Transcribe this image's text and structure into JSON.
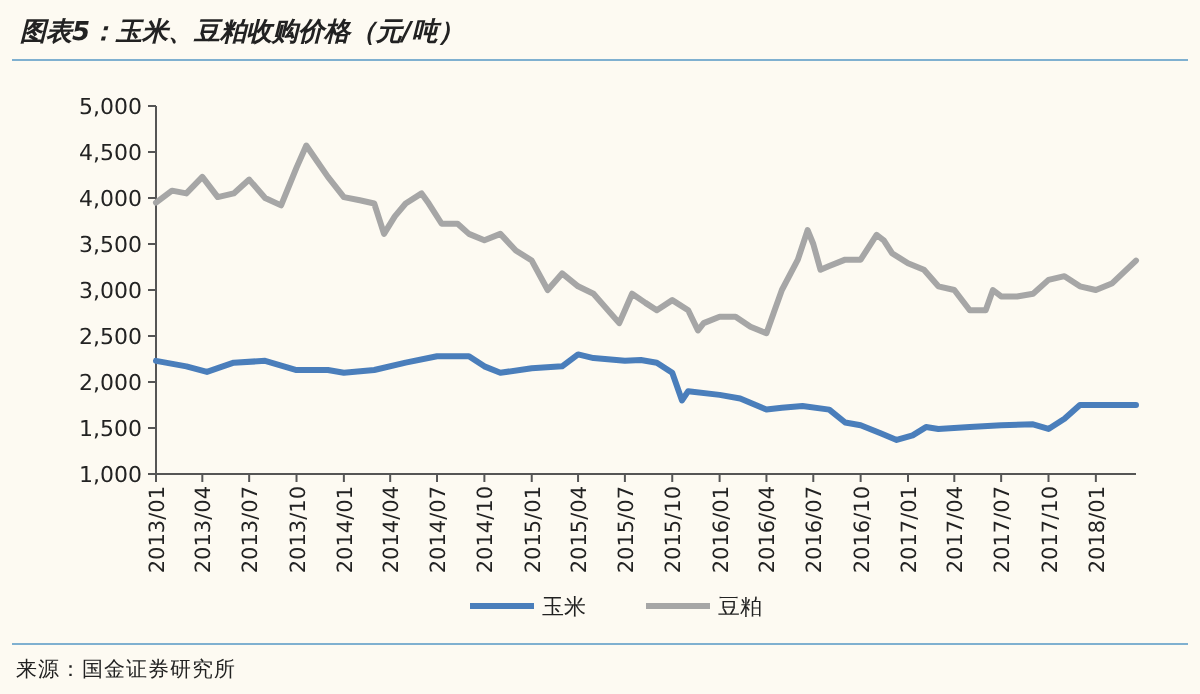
{
  "chart_data": {
    "type": "line",
    "title": "图表5：玉米、豆粕收购价格（元/吨）",
    "annotations": [
      "来源：国金证券研究所"
    ],
    "xlim": [
      "2013-01",
      "2018-03-20"
    ],
    "ylim": [
      1000,
      5000
    ],
    "yticks": [
      {
        "value": 1000,
        "label": "1,000"
      },
      {
        "value": 1500,
        "label": "1,500"
      },
      {
        "value": 2000,
        "label": "2,000"
      },
      {
        "value": 2500,
        "label": "2,500"
      },
      {
        "value": 3000,
        "label": "3,000"
      },
      {
        "value": 3500,
        "label": "3,500"
      },
      {
        "value": 4000,
        "label": "4,000"
      },
      {
        "value": 4500,
        "label": "4,500"
      },
      {
        "value": 5000,
        "label": "5,000"
      }
    ],
    "xticks": [
      {
        "value": "2013-01",
        "label": "2013/01"
      },
      {
        "value": "2013-04",
        "label": "2013/04"
      },
      {
        "value": "2013-07",
        "label": "2013/07"
      },
      {
        "value": "2013-10",
        "label": "2013/10"
      },
      {
        "value": "2014-01",
        "label": "2014/01"
      },
      {
        "value": "2014-04",
        "label": "2014/04"
      },
      {
        "value": "2014-07",
        "label": "2014/07"
      },
      {
        "value": "2014-10",
        "label": "2014/10"
      },
      {
        "value": "2015-01",
        "label": "2015/01"
      },
      {
        "value": "2015-04",
        "label": "2015/04"
      },
      {
        "value": "2015-07",
        "label": "2015/07"
      },
      {
        "value": "2015-10",
        "label": "2015/10"
      },
      {
        "value": "2016-01",
        "label": "2016/01"
      },
      {
        "value": "2016-04",
        "label": "2016/04"
      },
      {
        "value": "2016-07",
        "label": "2016/07"
      },
      {
        "value": "2016-10",
        "label": "2016/10"
      },
      {
        "value": "2017-01",
        "label": "2017/01"
      },
      {
        "value": "2017-04",
        "label": "2017/04"
      },
      {
        "value": "2017-07",
        "label": "2017/07"
      },
      {
        "value": "2017-10",
        "label": "2017/10"
      },
      {
        "value": "2018-01",
        "label": "2018/01"
      }
    ],
    "legend": "bottom",
    "grid": false,
    "marker": "none",
    "line_style": "solid",
    "series": [
      {
        "name": "玉米",
        "color": "#4a7ebb",
        "x": [
          "2013-01-01",
          "2013-03-01",
          "2013-04-10",
          "2013-05-01",
          "2013-06-01",
          "2013-08-01",
          "2013-10-01",
          "2013-12-01",
          "2014-01-01",
          "2014-03-01",
          "2014-05-01",
          "2014-07-01",
          "2014-09-01",
          "2014-10-01",
          "2014-11-01",
          "2015-01-01",
          "2015-03-01",
          "2015-04-01",
          "2015-05-01",
          "2015-07-01",
          "2015-08-01",
          "2015-09-01",
          "2015-10-01",
          "2015-10-20",
          "2015-11-01",
          "2016-01-01",
          "2016-02-10",
          "2016-04-01",
          "2016-05-01",
          "2016-06-10",
          "2016-08-01",
          "2016-09-01",
          "2016-10-01",
          "2016-11-10",
          "2016-12-10",
          "2017-01-10",
          "2017-02-05",
          "2017-03-01",
          "2017-05-01",
          "2017-07-01",
          "2017-09-01",
          "2017-10-01",
          "2017-11-01",
          "2017-12-01",
          "2018-03-20"
        ],
        "values": [
          2230,
          2170,
          2110,
          2150,
          2210,
          2230,
          2130,
          2130,
          2100,
          2130,
          2210,
          2280,
          2280,
          2170,
          2100,
          2150,
          2170,
          2300,
          2260,
          2230,
          2240,
          2210,
          2100,
          1800,
          1900,
          1860,
          1820,
          1700,
          1720,
          1740,
          1700,
          1560,
          1530,
          1440,
          1370,
          1420,
          1510,
          1490,
          1510,
          1530,
          1540,
          1490,
          1600,
          1750,
          1750
        ]
      },
      {
        "name": "豆粕",
        "color": "#a6a6a6",
        "x": [
          "2013-01-01",
          "2013-02-01",
          "2013-03-01",
          "2013-04-01",
          "2013-05-01",
          "2013-06-01",
          "2013-07-01",
          "2013-08-01",
          "2013-09-01",
          "2013-10-01",
          "2013-10-20",
          "2013-11-10",
          "2013-12-01",
          "2014-01-01",
          "2014-02-01",
          "2014-03-01",
          "2014-03-20",
          "2014-04-10",
          "2014-05-01",
          "2014-06-01",
          "2014-06-15",
          "2014-07-10",
          "2014-08-10",
          "2014-09-01",
          "2014-10-01",
          "2014-11-01",
          "2014-12-01",
          "2015-01-01",
          "2015-02-01",
          "2015-03-01",
          "2015-04-01",
          "2015-05-01",
          "2015-06-20",
          "2015-07-15",
          "2015-08-10",
          "2015-09-01",
          "2015-10-01",
          "2015-11-01",
          "2015-11-20",
          "2015-12-01",
          "2016-01-01",
          "2016-02-01",
          "2016-03-01",
          "2016-04-01",
          "2016-04-15",
          "2016-05-01",
          "2016-06-01",
          "2016-06-20",
          "2016-07-01",
          "2016-07-15",
          "2016-08-01",
          "2016-09-01",
          "2016-10-01",
          "2016-11-01",
          "2016-11-15",
          "2016-12-01",
          "2017-01-01",
          "2017-02-01",
          "2017-03-01",
          "2017-04-01",
          "2017-05-01",
          "2017-06-01",
          "2017-06-15",
          "2017-07-01",
          "2017-08-01",
          "2017-09-01",
          "2017-10-01",
          "2017-11-01",
          "2017-12-01",
          "2018-01-01",
          "2018-02-01",
          "2018-03-20"
        ],
        "values": [
          3950,
          4080,
          4050,
          4230,
          4010,
          4050,
          4200,
          4000,
          3920,
          4330,
          4570,
          4400,
          4230,
          4010,
          3975,
          3940,
          3610,
          3800,
          3940,
          4050,
          3940,
          3720,
          3720,
          3610,
          3540,
          3610,
          3430,
          3320,
          3000,
          3180,
          3040,
          2960,
          2640,
          2960,
          2860,
          2780,
          2890,
          2780,
          2560,
          2640,
          2710,
          2710,
          2600,
          2530,
          2750,
          3000,
          3330,
          3650,
          3500,
          3220,
          3260,
          3330,
          3330,
          3600,
          3540,
          3400,
          3290,
          3220,
          3040,
          3000,
          2780,
          2780,
          3000,
          2930,
          2930,
          2960,
          3110,
          3150,
          3040,
          3000,
          3070,
          3320
        ]
      }
    ]
  }
}
